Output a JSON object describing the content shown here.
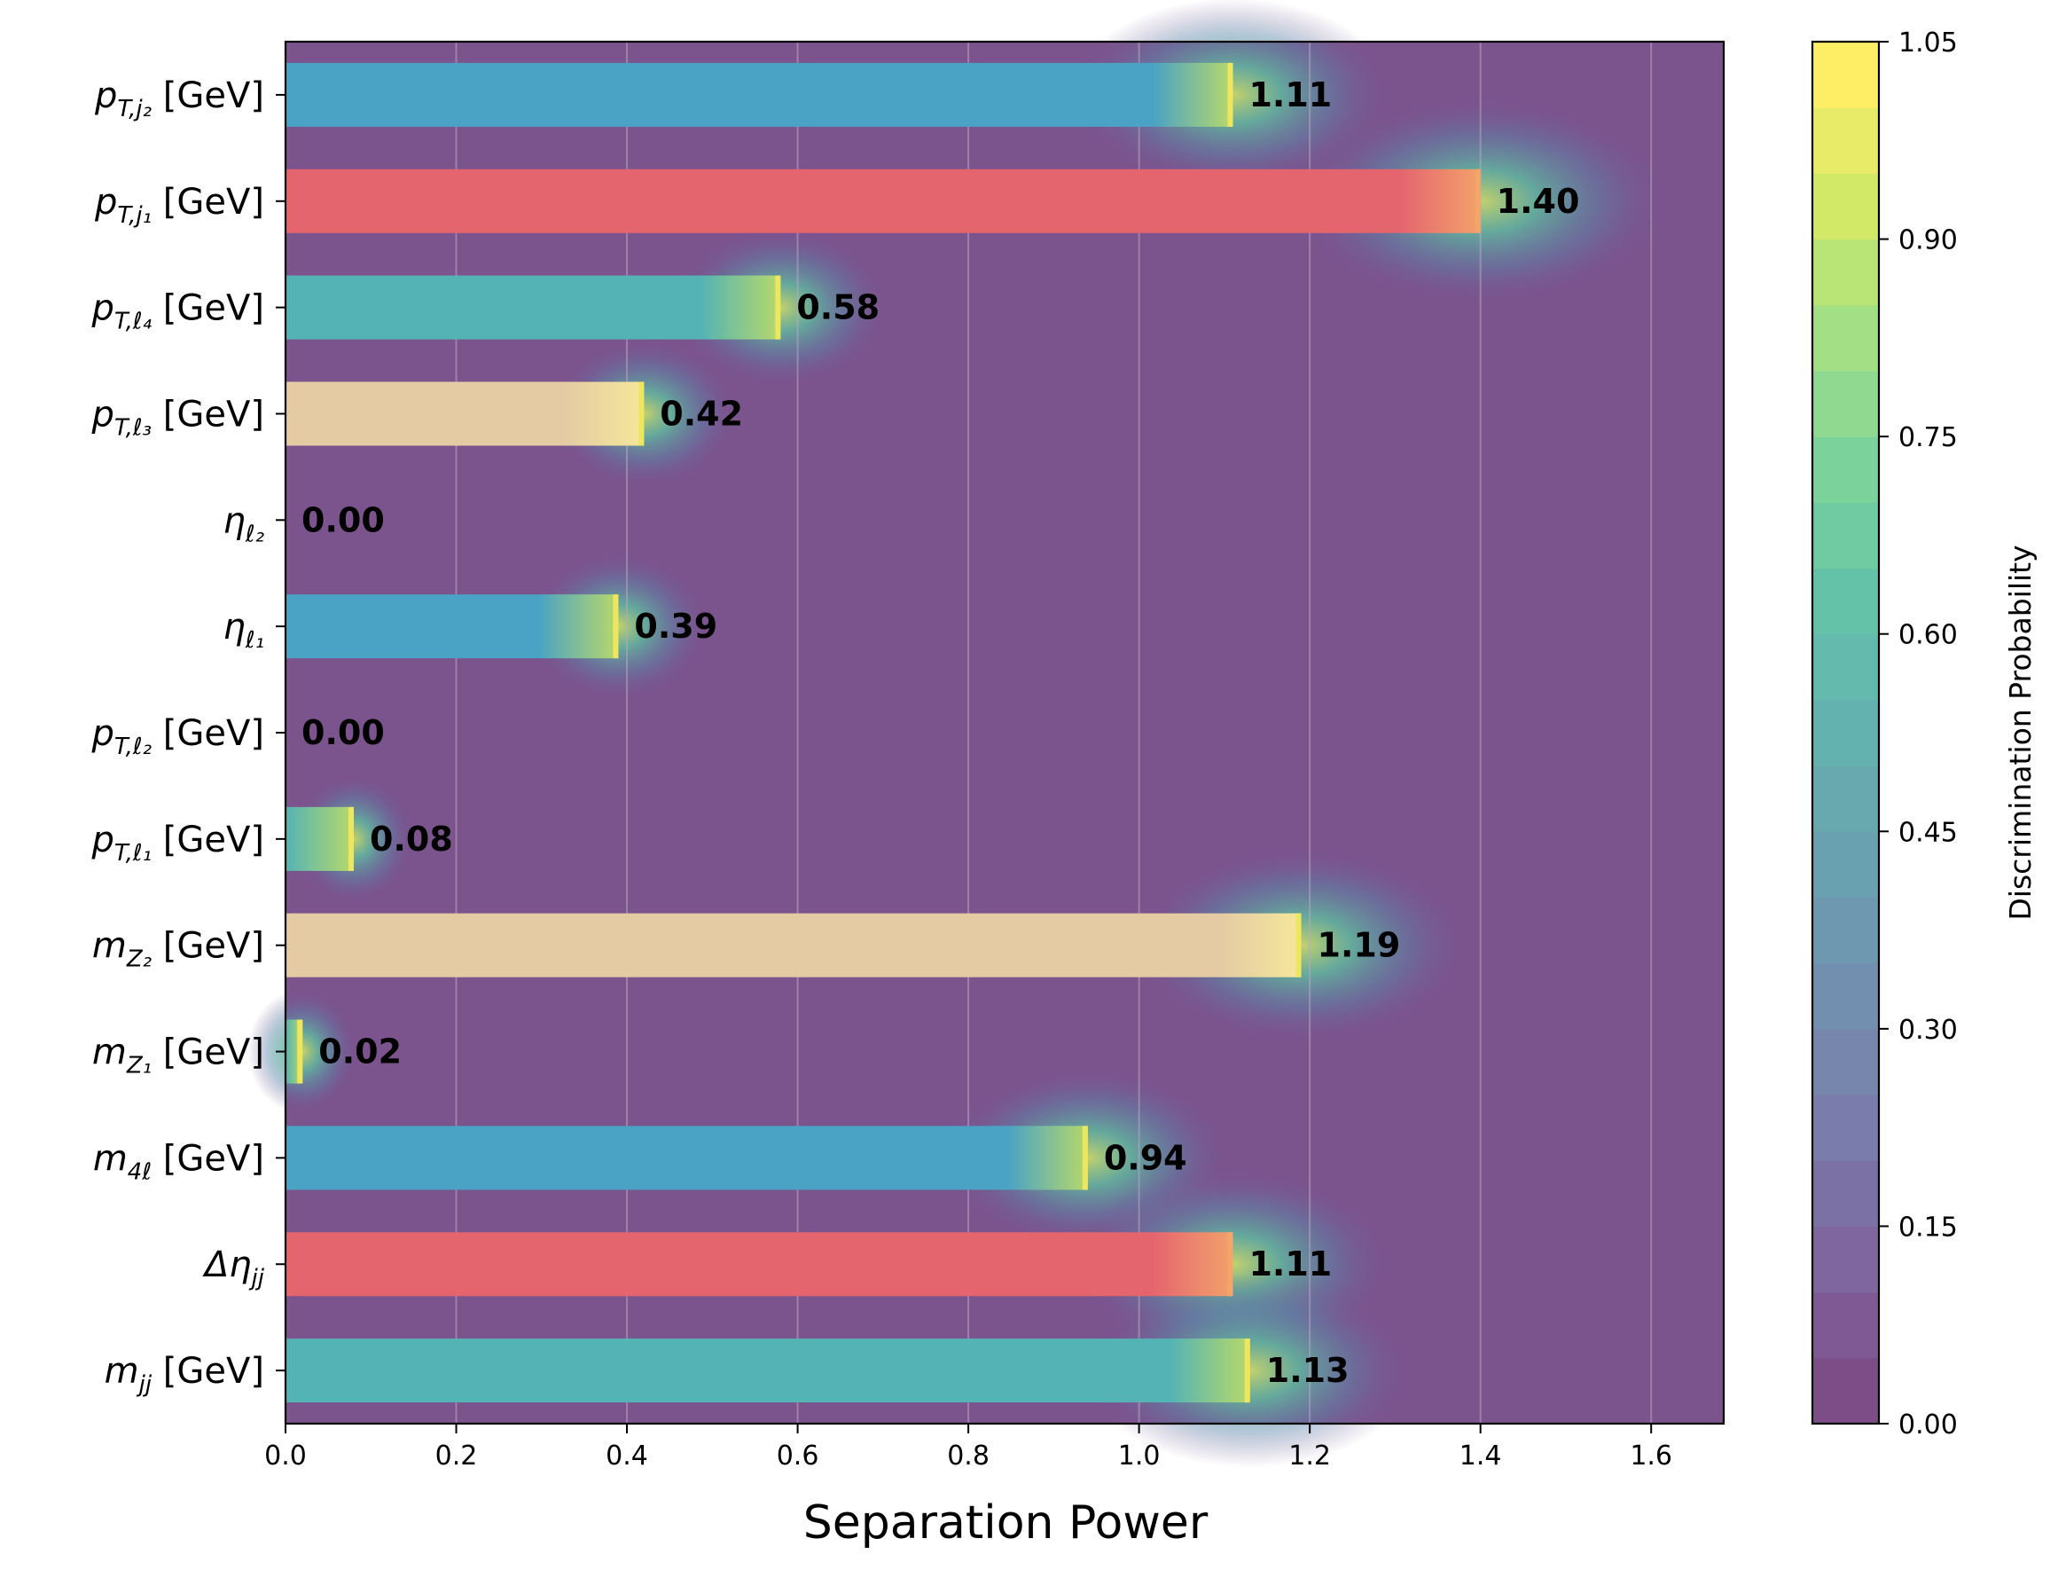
{
  "chart_data": {
    "type": "bar",
    "orientation": "horizontal",
    "xlabel": "Separation Power",
    "xlim": [
      0.0,
      1.685
    ],
    "xticks": [
      "0.0",
      "0.2",
      "0.4",
      "0.6",
      "0.8",
      "1.0",
      "1.2",
      "1.4",
      "1.6"
    ],
    "xtick_values": [
      0.0,
      0.2,
      0.4,
      0.6,
      0.8,
      1.0,
      1.2,
      1.4,
      1.6
    ],
    "grid": "vertical",
    "background_color": "#7b538d",
    "categories": [
      {
        "base": "p",
        "sub": "T,j₂",
        "unit": " [GeV]",
        "value": 1.11,
        "label": "1.11",
        "color": "#4aa3c4"
      },
      {
        "base": "p",
        "sub": "T,j₁",
        "unit": " [GeV]",
        "value": 1.4,
        "label": "1.40",
        "color": "#e5656f"
      },
      {
        "base": "p",
        "sub": "T,ℓ₄",
        "unit": " [GeV]",
        "value": 0.58,
        "label": "0.58",
        "color": "#54b3b4"
      },
      {
        "base": "p",
        "sub": "T,ℓ₃",
        "unit": " [GeV]",
        "value": 0.42,
        "label": "0.42",
        "color": "#e4cba4"
      },
      {
        "base": "η",
        "sub": "ℓ₂",
        "unit": "",
        "value": 0.0,
        "label": "0.00",
        "color": "#4aa3c4"
      },
      {
        "base": "η",
        "sub": "ℓ₁",
        "unit": "",
        "value": 0.39,
        "label": "0.39",
        "color": "#4aa3c4"
      },
      {
        "base": "p",
        "sub": "T,ℓ₂",
        "unit": " [GeV]",
        "value": 0.0,
        "label": "0.00",
        "color": "#54b3b4"
      },
      {
        "base": "p",
        "sub": "T,ℓ₁",
        "unit": " [GeV]",
        "value": 0.08,
        "label": "0.08",
        "color": "#54b3b4"
      },
      {
        "base": "m",
        "sub": "Z₂",
        "unit": " [GeV]",
        "value": 1.19,
        "label": "1.19",
        "color": "#e4cba4"
      },
      {
        "base": "m",
        "sub": "Z₁",
        "unit": " [GeV]",
        "value": 0.02,
        "label": "0.02",
        "color": "#54b3b4"
      },
      {
        "base": "m",
        "sub": "4ℓ",
        "unit": " [GeV]",
        "value": 0.94,
        "label": "0.94",
        "color": "#4aa3c4"
      },
      {
        "base": "Δη",
        "sub": "jj",
        "unit": "",
        "value": 1.11,
        "label": "1.11",
        "color": "#e5656f"
      },
      {
        "base": "m",
        "sub": "jj",
        "unit": " [GeV]",
        "value": 1.13,
        "label": "1.13",
        "color": "#54b3b4"
      }
    ],
    "colorbar": {
      "label": "Discrimination Probability",
      "range": [
        0.0,
        1.05
      ],
      "ticks": [
        "0.00",
        "0.15",
        "0.30",
        "0.45",
        "0.60",
        "0.75",
        "0.90",
        "1.05"
      ],
      "colormap": "viridis",
      "alpha": 0.7
    }
  }
}
